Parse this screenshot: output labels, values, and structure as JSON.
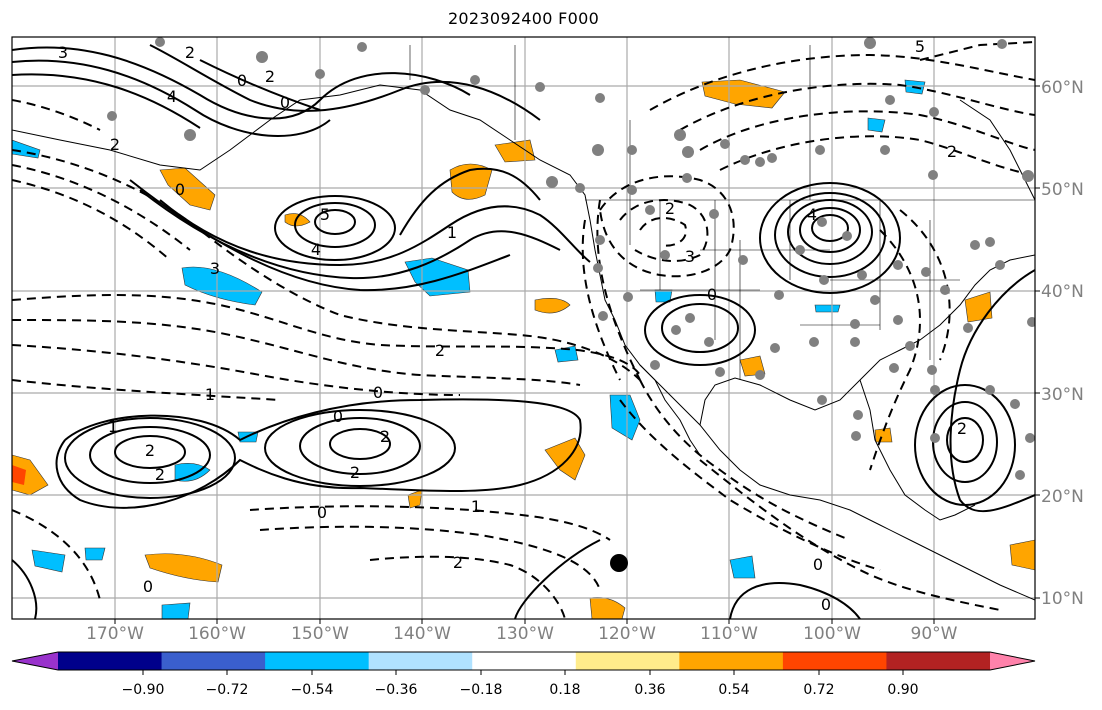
{
  "title": "2023092400 F000",
  "map": {
    "region": "North Pacific and North America",
    "longitude_labels": [
      "170°W",
      "160°W",
      "150°W",
      "140°W",
      "130°W",
      "120°W",
      "110°W",
      "100°W",
      "90°W"
    ],
    "latitude_labels": [
      "60°N",
      "50°N",
      "40°N",
      "30°N",
      "20°N",
      "10°N"
    ],
    "contour_labels": [
      {
        "id": "c1",
        "text": "3"
      },
      {
        "id": "c2",
        "text": "2"
      },
      {
        "id": "c3",
        "text": "0"
      },
      {
        "id": "c4",
        "text": "4"
      },
      {
        "id": "c5",
        "text": "2"
      },
      {
        "id": "c6",
        "text": "0"
      },
      {
        "id": "c7",
        "text": "5"
      },
      {
        "id": "c8",
        "text": "4"
      },
      {
        "id": "c9",
        "text": "3"
      },
      {
        "id": "c10",
        "text": "2"
      },
      {
        "id": "c11",
        "text": "0"
      },
      {
        "id": "c12",
        "text": "1"
      },
      {
        "id": "c13",
        "text": "0"
      },
      {
        "id": "c14",
        "text": "2"
      },
      {
        "id": "c15",
        "text": "1"
      },
      {
        "id": "c16",
        "text": "2"
      },
      {
        "id": "c17",
        "text": "2"
      },
      {
        "id": "c18",
        "text": "1"
      },
      {
        "id": "c19",
        "text": "0"
      },
      {
        "id": "c20",
        "text": "2"
      },
      {
        "id": "c21",
        "text": "2"
      },
      {
        "id": "c22",
        "text": "0"
      },
      {
        "id": "c23",
        "text": "1"
      },
      {
        "id": "c24",
        "text": "2"
      },
      {
        "id": "c25",
        "text": "0"
      },
      {
        "id": "c26",
        "text": "4"
      },
      {
        "id": "c27",
        "text": "3"
      },
      {
        "id": "c28",
        "text": "2"
      },
      {
        "id": "c29",
        "text": "5"
      },
      {
        "id": "c30",
        "text": "2"
      },
      {
        "id": "c31",
        "text": "0"
      },
      {
        "id": "c32",
        "text": "0"
      },
      {
        "id": "c33",
        "text": "2"
      },
      {
        "id": "c34",
        "text": "0"
      }
    ],
    "marker": {
      "type": "black-dot"
    }
  },
  "colorbar": {
    "colors": [
      "#9932cc",
      "#00008b",
      "#3a5fcd",
      "#00bfff",
      "#b0e2ff",
      "#ffffff",
      "#ffec8b",
      "#ffa500",
      "#ff4500",
      "#b22222",
      "#ff82ab"
    ],
    "tick_labels": [
      "−0.90",
      "−0.72",
      "−0.54",
      "−0.36",
      "−0.18",
      "0.18",
      "0.36",
      "0.54",
      "0.72",
      "0.90"
    ]
  }
}
